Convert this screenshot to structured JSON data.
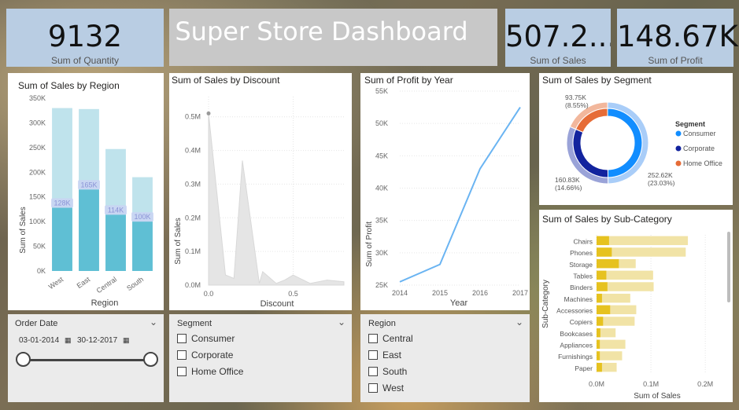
{
  "title": "Super Store Dashboard",
  "kpis": {
    "quantity": {
      "value": "9132",
      "label": "Sum of Quantity"
    },
    "sales": {
      "value": "507.2...",
      "label": "Sum of Sales"
    },
    "profit": {
      "value": "148.67K",
      "label": "Sum of Profit"
    }
  },
  "colors": {
    "kpi_bg": "#b9cde3",
    "bar_dark": "#5fbfd4",
    "bar_light": "#bfe3ec",
    "line": "#6ab4f2",
    "consumer": "#118dff",
    "corporate": "#12239e",
    "home_office": "#e66c37",
    "subcat": "#e6c21f"
  },
  "region_chart": {
    "title": "Sum of Sales by Region",
    "chart_data": {
      "type": "bar",
      "categories": [
        "West",
        "East",
        "Central",
        "South"
      ],
      "values": [
        128000,
        165000,
        114000,
        100000
      ],
      "data_labels": [
        "128K",
        "165K",
        "114K",
        "100K"
      ],
      "background_values": [
        330000,
        328000,
        247000,
        190000
      ],
      "yticks": [
        "0K",
        "50K",
        "100K",
        "150K",
        "200K",
        "250K",
        "300K",
        "350K"
      ],
      "ylim": [
        0,
        350000
      ],
      "xlabel": "Region",
      "ylabel": "Sum of Sales"
    }
  },
  "discount_chart": {
    "title": "Sum of Sales by Discount",
    "chart_data": {
      "type": "area",
      "x": [
        0,
        0.1,
        0.15,
        0.2,
        0.3,
        0.32,
        0.4,
        0.45,
        0.5,
        0.6,
        0.7,
        0.8
      ],
      "values": [
        510000,
        30000,
        20000,
        370000,
        5000,
        40000,
        5000,
        15000,
        30000,
        5000,
        15000,
        10000
      ],
      "xticks": [
        "0.0",
        "0.5"
      ],
      "yticks": [
        "0.0M",
        "0.1M",
        "0.2M",
        "0.3M",
        "0.4M",
        "0.5M"
      ],
      "ylim": [
        0,
        560000
      ],
      "xlabel": "Discount",
      "ylabel": "Sum of Sales"
    }
  },
  "profit_chart": {
    "title": "Sum of Profit by Year",
    "chart_data": {
      "type": "line",
      "x": [
        2014,
        2015,
        2016,
        2017
      ],
      "values": [
        25500,
        28200,
        43000,
        52500
      ],
      "xticks": [
        "2014",
        "2015",
        "2016",
        "2017"
      ],
      "yticks": [
        "25K",
        "30K",
        "35K",
        "40K",
        "45K",
        "50K",
        "55K"
      ],
      "ylim": [
        25000,
        55000
      ],
      "xlabel": "Year",
      "ylabel": "Sum of Profit"
    }
  },
  "segment_chart": {
    "title": "Sum of Sales by Segment",
    "legend_title": "Segment",
    "chart_data": {
      "type": "pie",
      "categories": [
        "Consumer",
        "Corporate",
        "Home Office"
      ],
      "values": [
        252620,
        160830,
        93750
      ],
      "data_labels": [
        [
          "252.62K",
          "(23.03%)"
        ],
        [
          "160.83K",
          "(14.66%)"
        ],
        [
          "93.75K",
          "(8.55%)"
        ]
      ]
    }
  },
  "subcat_chart": {
    "title": "Sum of Sales by Sub-Category",
    "chart_data": {
      "type": "bar",
      "categories": [
        "Chairs",
        "Phones",
        "Storage",
        "Tables",
        "Binders",
        "Machines",
        "Accessories",
        "Copiers",
        "Bookcases",
        "Appliances",
        "Furnishings",
        "Paper"
      ],
      "values": [
        23000,
        28000,
        41000,
        18000,
        20000,
        10000,
        25000,
        12000,
        7000,
        6000,
        6000,
        10000
      ],
      "background_values": [
        168000,
        164000,
        72000,
        104000,
        105000,
        62000,
        73000,
        70000,
        35000,
        53000,
        47000,
        37000
      ],
      "xticks": [
        "0.0M",
        "0.1M",
        "0.2M"
      ],
      "xlim": [
        0,
        220000
      ],
      "xlabel": "Sum of Sales",
      "ylabel": "Sub-Category"
    }
  },
  "order_date": {
    "label": "Order Date",
    "start": "03-01-2014",
    "end": "30-12-2017"
  },
  "segment_slicer": {
    "label": "Segment",
    "options": [
      "Consumer",
      "Corporate",
      "Home Office"
    ]
  },
  "region_slicer": {
    "label": "Region",
    "options": [
      "Central",
      "East",
      "South",
      "West"
    ]
  }
}
